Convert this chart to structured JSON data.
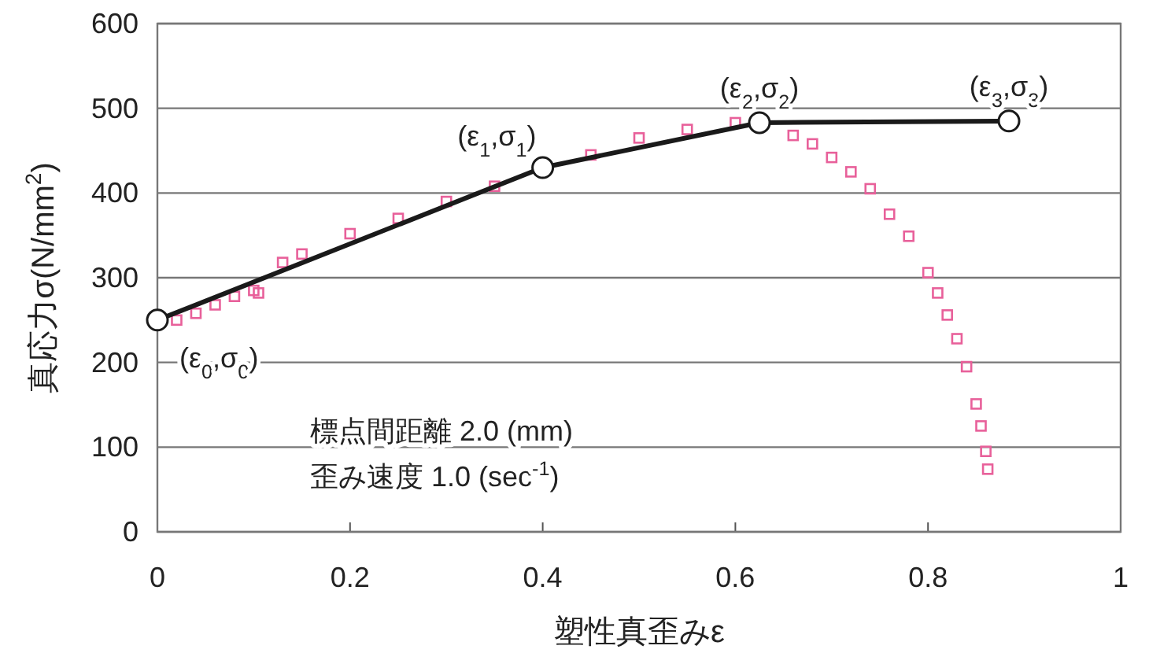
{
  "chart_data": {
    "type": "line",
    "xlabel": "塑性真歪みε",
    "ylabel": "真応力σ(N/mm$^{2}$)",
    "xlim": [
      0,
      1
    ],
    "xticks": [
      0,
      0.2,
      0.4,
      0.6,
      0.8,
      1
    ],
    "ylim": [
      0,
      600
    ],
    "yticks": [
      0,
      100,
      200,
      300,
      400,
      500,
      600
    ],
    "grid": "y",
    "series": [
      {
        "type": "scatter",
        "marker": "square",
        "color": "#e8609a",
        "x": [
          0.02,
          0.04,
          0.06,
          0.08,
          0.1,
          0.105,
          0.13,
          0.15,
          0.2,
          0.25,
          0.3,
          0.35,
          0.45,
          0.5,
          0.55,
          0.6,
          0.66,
          0.68,
          0.7,
          0.72,
          0.74,
          0.76,
          0.78,
          0.8,
          0.81,
          0.82,
          0.83,
          0.84,
          0.85,
          0.855,
          0.86,
          0.862
        ],
        "values": [
          250,
          258,
          268,
          278,
          285,
          282,
          318,
          328,
          352,
          370,
          390,
          408,
          445,
          465,
          475,
          483,
          468,
          458,
          442,
          425,
          405,
          375,
          349,
          306,
          282,
          256,
          228,
          195,
          151,
          125,
          95,
          74
        ]
      },
      {
        "type": "line",
        "marker": "circle",
        "line_style": "solid",
        "color": "#1a1a1a",
        "x": [
          0,
          0.4,
          0.625,
          0.884
        ],
        "values": [
          250,
          430,
          483,
          485
        ]
      }
    ],
    "annotations": [
      {
        "text": "(ε$_{0}$,σ$_{0}$)",
        "x": 0,
        "y": 250
      },
      {
        "text": "(ε$_{1}$,σ$_{1}$)",
        "x": 0.4,
        "y": 430
      },
      {
        "text": "(ε$_{2}$,σ$_{2}$)",
        "x": 0.625,
        "y": 483
      },
      {
        "text": "(ε$_{3}$,σ$_{3}$)",
        "x": 0.884,
        "y": 485
      },
      "標点間距離 2.0 (mm)",
      "歪み速度 1.0 (sec$^{-1}$)"
    ]
  }
}
